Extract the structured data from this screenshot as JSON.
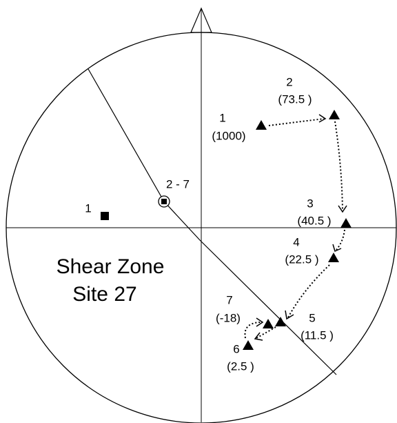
{
  "title": [
    "Shear Zone",
    "Site 27"
  ],
  "square_label": "1",
  "circle_label": "2 - 7",
  "steps": [
    {
      "label": "1",
      "value": "(1000)"
    },
    {
      "label": "2",
      "value": "(73.5 )"
    },
    {
      "label": "3",
      "value": "(40.5 )"
    },
    {
      "label": "4",
      "value": "(22.5 )"
    },
    {
      "label": "5",
      "value": "(11.5 )"
    },
    {
      "label": "6",
      "value": "(2.5 )"
    },
    {
      "label": "7",
      "value": "(-18)"
    }
  ]
}
